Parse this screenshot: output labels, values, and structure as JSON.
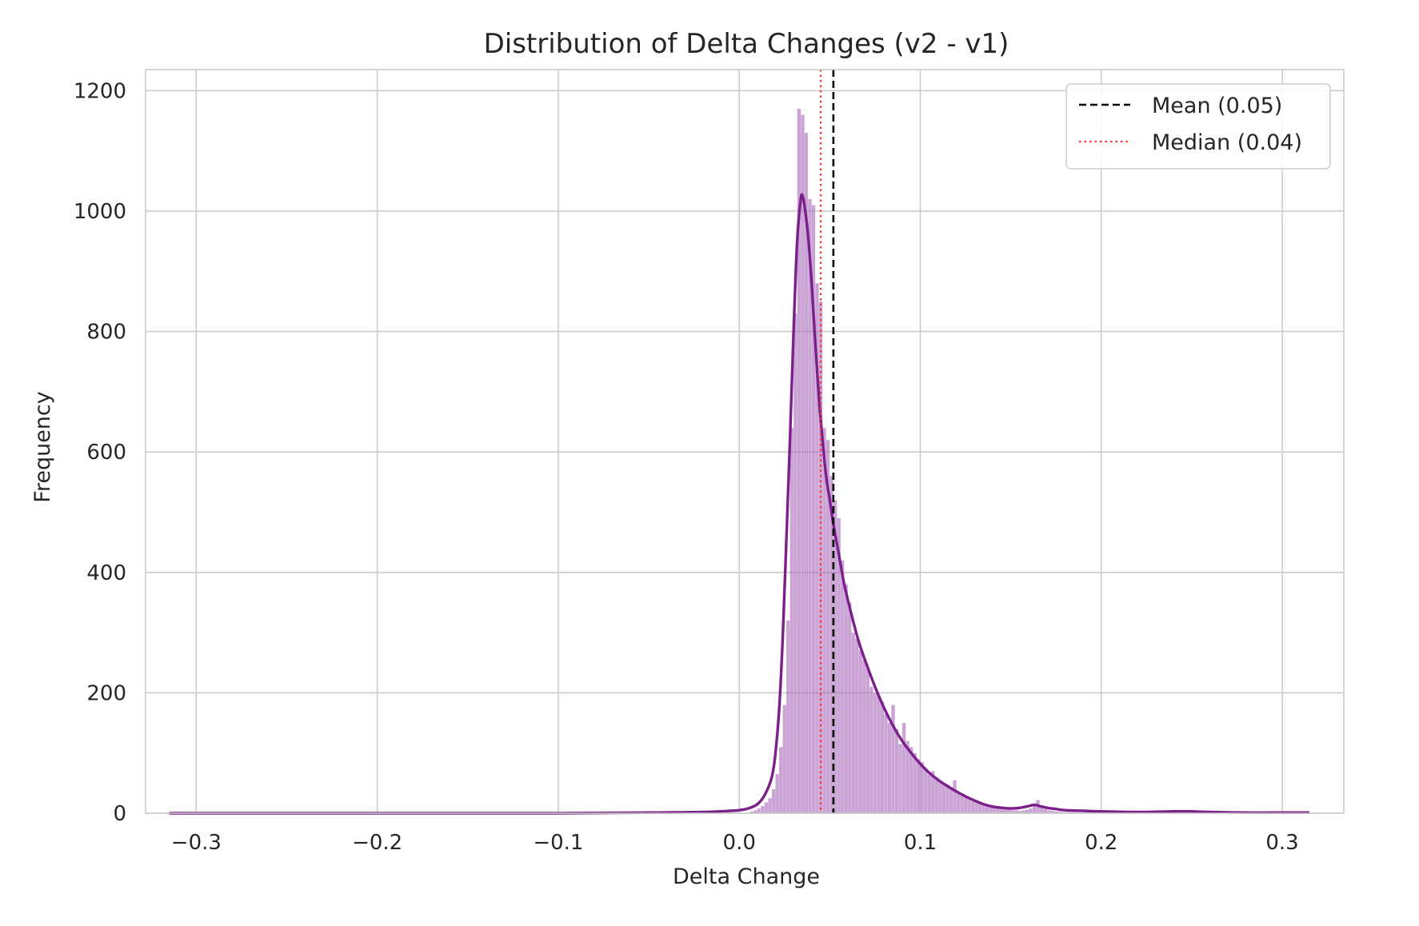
{
  "chart_data": {
    "type": "histogram",
    "title": "Distribution of Delta Changes (v2 - v1)",
    "xlabel": "Delta Change",
    "ylabel": "Frequency",
    "xlim": [
      -0.328,
      0.334
    ],
    "ylim": [
      0,
      1235
    ],
    "xticks": [
      -0.3,
      -0.2,
      -0.1,
      0.0,
      0.1,
      0.2,
      0.3
    ],
    "xtick_labels": [
      "−0.3",
      "−0.2",
      "−0.1",
      "0.0",
      "0.1",
      "0.2",
      "0.3"
    ],
    "yticks": [
      0,
      200,
      400,
      600,
      800,
      1000,
      1200
    ],
    "ytick_labels": [
      "0",
      "200",
      "400",
      "600",
      "800",
      "1000",
      "1200"
    ],
    "grid": true,
    "legend_position": "top-right",
    "bar_color": "#a05ab4",
    "kde_color": "#7b1f8a",
    "histogram": {
      "bin_width": 0.002,
      "bins": [
        [
          0.006,
          3
        ],
        [
          0.008,
          5
        ],
        [
          0.01,
          8
        ],
        [
          0.012,
          12
        ],
        [
          0.014,
          18
        ],
        [
          0.016,
          25
        ],
        [
          0.018,
          40
        ],
        [
          0.02,
          65
        ],
        [
          0.022,
          110
        ],
        [
          0.024,
          180
        ],
        [
          0.026,
          320
        ],
        [
          0.028,
          640
        ],
        [
          0.03,
          830
        ],
        [
          0.032,
          1170
        ],
        [
          0.034,
          1160
        ],
        [
          0.036,
          1130
        ],
        [
          0.038,
          1020
        ],
        [
          0.04,
          1010
        ],
        [
          0.042,
          880
        ],
        [
          0.044,
          850
        ],
        [
          0.046,
          640
        ],
        [
          0.048,
          620
        ],
        [
          0.05,
          560
        ],
        [
          0.052,
          520
        ],
        [
          0.054,
          490
        ],
        [
          0.056,
          420
        ],
        [
          0.058,
          380
        ],
        [
          0.06,
          350
        ],
        [
          0.062,
          300
        ],
        [
          0.064,
          290
        ],
        [
          0.066,
          270
        ],
        [
          0.068,
          255
        ],
        [
          0.07,
          240
        ],
        [
          0.072,
          210
        ],
        [
          0.074,
          200
        ],
        [
          0.076,
          195
        ],
        [
          0.078,
          185
        ],
        [
          0.08,
          165
        ],
        [
          0.082,
          150
        ],
        [
          0.084,
          180
        ],
        [
          0.086,
          140
        ],
        [
          0.088,
          115
        ],
        [
          0.09,
          150
        ],
        [
          0.092,
          120
        ],
        [
          0.094,
          110
        ],
        [
          0.096,
          100
        ],
        [
          0.098,
          90
        ],
        [
          0.1,
          85
        ],
        [
          0.102,
          75
        ],
        [
          0.104,
          65
        ],
        [
          0.106,
          70
        ],
        [
          0.108,
          60
        ],
        [
          0.11,
          55
        ],
        [
          0.112,
          50
        ],
        [
          0.114,
          48
        ],
        [
          0.116,
          40
        ],
        [
          0.118,
          55
        ],
        [
          0.12,
          35
        ],
        [
          0.122,
          30
        ],
        [
          0.124,
          28
        ],
        [
          0.126,
          25
        ],
        [
          0.128,
          20
        ],
        [
          0.13,
          18
        ],
        [
          0.132,
          16
        ],
        [
          0.134,
          14
        ],
        [
          0.136,
          12
        ],
        [
          0.138,
          10
        ],
        [
          0.14,
          9
        ],
        [
          0.142,
          8
        ],
        [
          0.144,
          7
        ],
        [
          0.146,
          6
        ],
        [
          0.148,
          6
        ],
        [
          0.15,
          5
        ],
        [
          0.152,
          5
        ],
        [
          0.154,
          4
        ],
        [
          0.156,
          5
        ],
        [
          0.158,
          6
        ],
        [
          0.16,
          8
        ],
        [
          0.162,
          12
        ],
        [
          0.164,
          22
        ],
        [
          0.166,
          10
        ],
        [
          0.168,
          7
        ],
        [
          0.17,
          5
        ],
        [
          0.172,
          4
        ],
        [
          0.174,
          3
        ],
        [
          0.176,
          3
        ],
        [
          0.178,
          2
        ],
        [
          0.18,
          2
        ],
        [
          0.182,
          2
        ],
        [
          0.184,
          2
        ],
        [
          0.186,
          1
        ],
        [
          0.188,
          1
        ],
        [
          0.19,
          1
        ]
      ]
    },
    "kde": {
      "x": [
        -0.315,
        -0.2,
        -0.1,
        -0.05,
        -0.02,
        -0.005,
        0.0,
        0.005,
        0.01,
        0.014,
        0.018,
        0.02,
        0.022,
        0.024,
        0.026,
        0.028,
        0.03,
        0.032,
        0.034,
        0.035,
        0.036,
        0.038,
        0.04,
        0.042,
        0.044,
        0.046,
        0.048,
        0.05,
        0.052,
        0.055,
        0.058,
        0.062,
        0.066,
        0.07,
        0.075,
        0.08,
        0.085,
        0.09,
        0.095,
        0.1,
        0.105,
        0.11,
        0.115,
        0.12,
        0.125,
        0.13,
        0.135,
        0.14,
        0.145,
        0.15,
        0.155,
        0.16,
        0.163,
        0.166,
        0.17,
        0.175,
        0.18,
        0.19,
        0.2,
        0.22,
        0.24,
        0.25,
        0.26,
        0.28,
        0.3,
        0.315
      ],
      "y": [
        0,
        0,
        0,
        1,
        2,
        4,
        5,
        8,
        15,
        30,
        60,
        100,
        170,
        290,
        450,
        620,
        800,
        950,
        1020,
        1025,
        1010,
        960,
        880,
        780,
        690,
        620,
        560,
        520,
        480,
        430,
        380,
        330,
        285,
        250,
        210,
        175,
        145,
        120,
        100,
        82,
        67,
        55,
        45,
        36,
        28,
        21,
        15,
        11,
        9,
        8,
        9,
        12,
        14,
        12,
        9,
        7,
        5,
        4,
        3,
        2,
        3,
        3,
        2,
        1,
        1,
        1
      ]
    },
    "series": [
      {
        "name": "Mean (0.05)",
        "x": 0.052,
        "color": "#000000",
        "style": "dashed"
      },
      {
        "name": "Median (0.04)",
        "x": 0.045,
        "color": "#ff3030",
        "style": "dotted"
      }
    ]
  }
}
